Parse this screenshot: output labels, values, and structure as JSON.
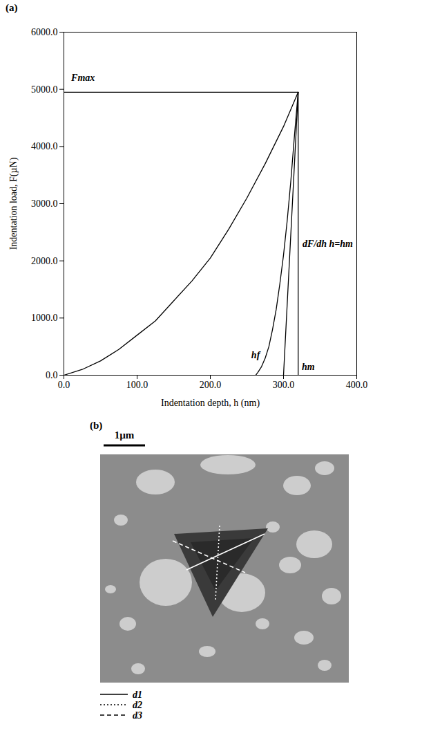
{
  "chart_data": {
    "type": "line",
    "panel_label": "(a)",
    "x_label": "Indentation depth, h (nm)",
    "y_label": "Indentation load, F(µN)",
    "xlim": [
      0,
      400
    ],
    "ylim": [
      0,
      6000
    ],
    "xticks": [
      {
        "value": 0,
        "label": "0.0"
      },
      {
        "value": 100,
        "label": "100.0"
      },
      {
        "value": 200,
        "label": "200.0"
      },
      {
        "value": 300,
        "label": "300.0"
      },
      {
        "value": 400,
        "label": "400.0"
      }
    ],
    "yticks": [
      {
        "value": 0,
        "label": "0.0"
      },
      {
        "value": 1000,
        "label": "1000.0"
      },
      {
        "value": 2000,
        "label": "2000.0"
      },
      {
        "value": 3000,
        "label": "3000.0"
      },
      {
        "value": 4000,
        "label": "4000.0"
      },
      {
        "value": 5000,
        "label": "5000.0"
      },
      {
        "value": 6000,
        "label": "6000.0"
      }
    ],
    "series": [
      {
        "color": "#000000",
        "line_style": "solid",
        "x": [
          0,
          25,
          50,
          75,
          100,
          125,
          150,
          175,
          200,
          225,
          250,
          275,
          300,
          320
        ],
        "values": [
          0,
          100,
          250,
          450,
          700,
          950,
          1300,
          1650,
          2050,
          2550,
          3100,
          3700,
          4350,
          4950
        ]
      },
      {
        "color": "#000000",
        "line_style": "solid",
        "x": [
          320,
          315,
          310,
          305,
          300,
          295,
          290,
          285,
          280,
          275,
          270,
          265,
          262
        ],
        "values": [
          4950,
          4200,
          3400,
          2700,
          2100,
          1600,
          1150,
          800,
          500,
          300,
          150,
          50,
          0
        ]
      },
      {
        "color": "#000000",
        "line_style": "solid",
        "x": [
          300,
          320
        ],
        "values": [
          0,
          4950
        ]
      },
      {
        "color": "#000000",
        "line_style": "solid",
        "x": [
          320,
          320
        ],
        "values": [
          0,
          4950
        ]
      },
      {
        "color": "#000000",
        "line_style": "solid",
        "x": [
          0,
          320
        ],
        "values": [
          4950,
          4950
        ]
      }
    ],
    "annotations": [
      {
        "text": "Fmax",
        "x": 10,
        "y": 5200
      },
      {
        "text": "hf",
        "x": 256,
        "y": 350
      },
      {
        "text": "hm",
        "x": 325,
        "y": 150
      },
      {
        "text": "dF/dh h=hm",
        "x": 326,
        "y": 2300
      }
    ]
  },
  "panel_b": {
    "panel_label": "(b)",
    "scale_bar": "1µm",
    "lines": [
      {
        "name": "d1",
        "line_style": "solid"
      },
      {
        "name": "d2",
        "line_style": "dotted"
      },
      {
        "name": "d3",
        "line_style": "dashed"
      }
    ]
  }
}
